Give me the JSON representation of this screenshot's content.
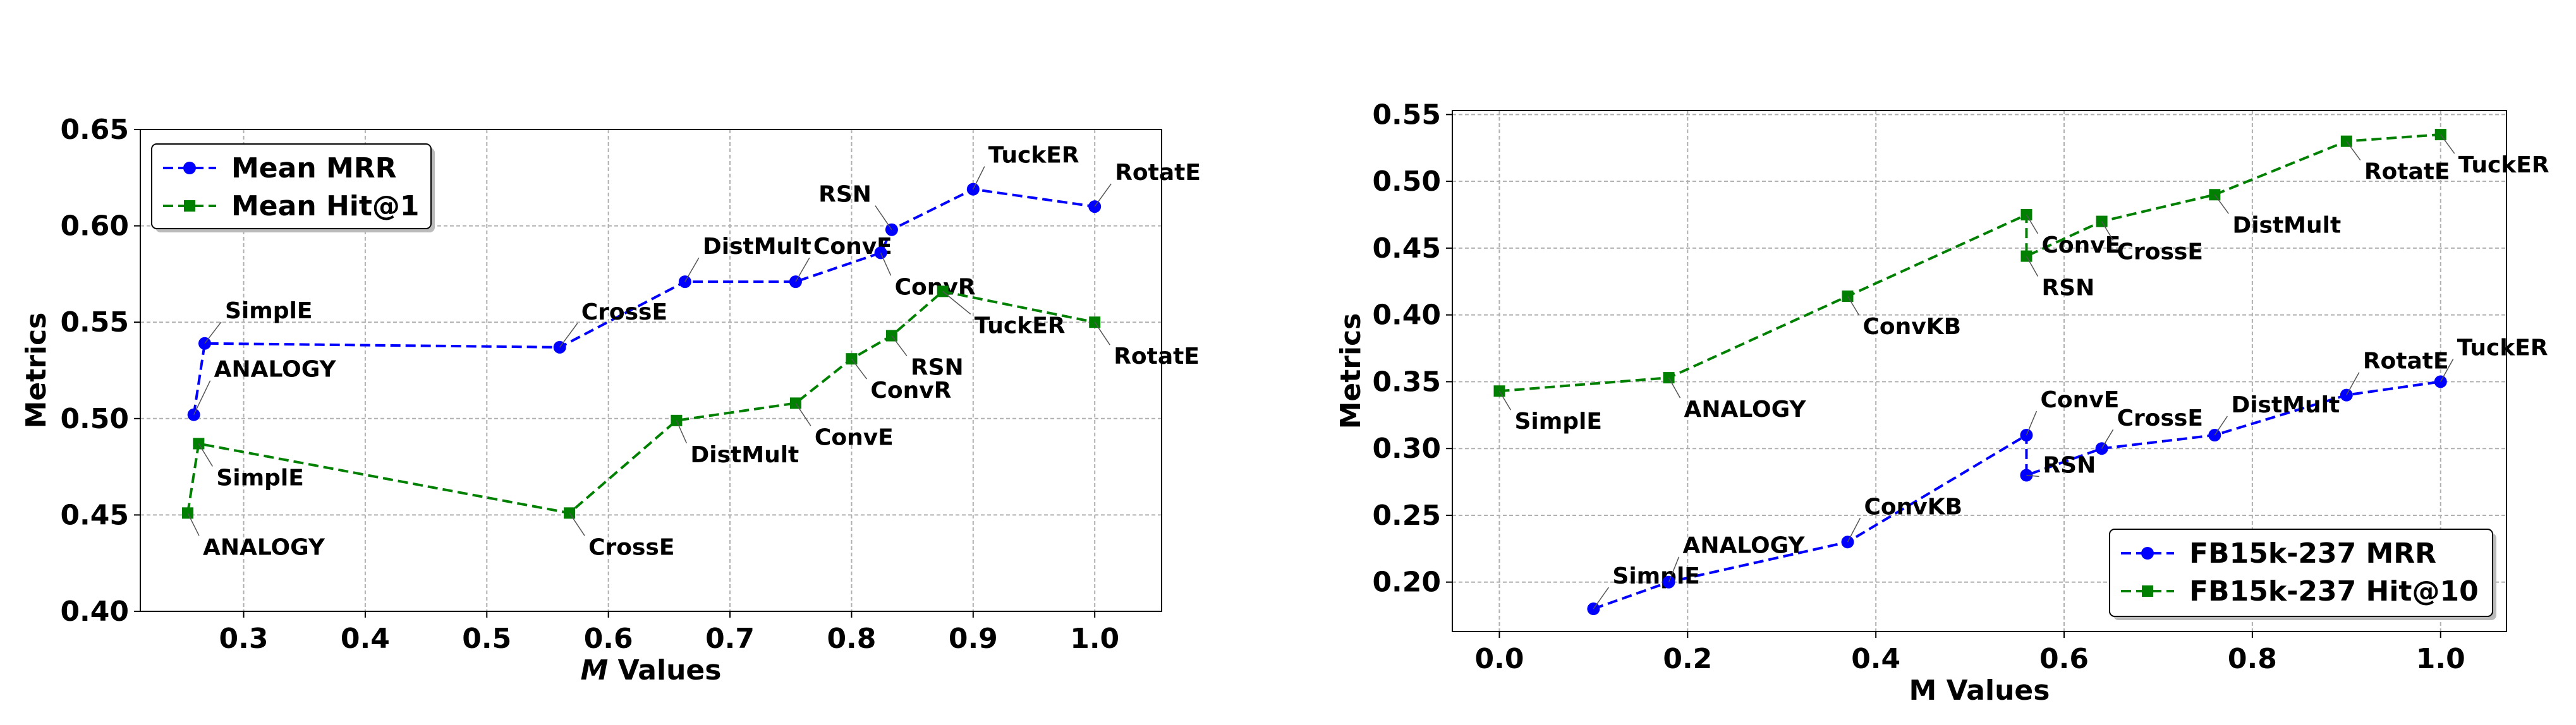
{
  "chart_data": [
    {
      "type": "line",
      "xlabel_italic": "M",
      "xlabel_rest": " Values",
      "ylabel": "Metrics",
      "xlim": [
        0.215,
        1.055
      ],
      "ylim": [
        0.4,
        0.65
      ],
      "xticks": [
        "0.3",
        "0.4",
        "0.5",
        "0.6",
        "0.7",
        "0.8",
        "0.9",
        "1.0"
      ],
      "yticks": [
        "0.40",
        "0.45",
        "0.50",
        "0.55",
        "0.60",
        "0.65"
      ],
      "grid": true,
      "legend": "upper-left",
      "series": [
        {
          "name": "Mean MRR",
          "color": "#0000ff",
          "marker": "circle",
          "points": [
            {
              "x": 0.259,
              "y": 0.502,
              "label": "ANALOGY"
            },
            {
              "x": 0.268,
              "y": 0.539,
              "label": "SimplE"
            },
            {
              "x": 0.56,
              "y": 0.537,
              "label": "CrossE"
            },
            {
              "x": 0.663,
              "y": 0.571,
              "label": "DistMult"
            },
            {
              "x": 0.754,
              "y": 0.571,
              "label": "ConvE"
            },
            {
              "x": 0.824,
              "y": 0.586,
              "label": "ConvR"
            },
            {
              "x": 0.833,
              "y": 0.598,
              "label": "RSN"
            },
            {
              "x": 0.9,
              "y": 0.619,
              "label": "TuckER"
            },
            {
              "x": 1.0,
              "y": 0.61,
              "label": "RotatE"
            }
          ]
        },
        {
          "name": "Mean Hit@1",
          "color": "#008000",
          "marker": "square",
          "points": [
            {
              "x": 0.254,
              "y": 0.451,
              "label": "ANALOGY"
            },
            {
              "x": 0.263,
              "y": 0.487,
              "label": "SimplE"
            },
            {
              "x": 0.568,
              "y": 0.451,
              "label": "CrossE"
            },
            {
              "x": 0.656,
              "y": 0.499,
              "label": "DistMult"
            },
            {
              "x": 0.754,
              "y": 0.508,
              "label": "ConvE"
            },
            {
              "x": 0.8,
              "y": 0.531,
              "label": "ConvR"
            },
            {
              "x": 0.833,
              "y": 0.543,
              "label": "RSN"
            },
            {
              "x": 0.875,
              "y": 0.566,
              "label": "TuckER"
            },
            {
              "x": 1.0,
              "y": 0.55,
              "label": "RotatE"
            }
          ]
        }
      ]
    },
    {
      "type": "line",
      "xlabel": "M Values",
      "ylabel": "Metrics",
      "xlim": [
        -0.05,
        1.07
      ],
      "ylim": [
        0.163,
        0.553
      ],
      "xticks": [
        "0.0",
        "0.2",
        "0.4",
        "0.6",
        "0.8",
        "1.0"
      ],
      "yticks": [
        "0.20",
        "0.25",
        "0.30",
        "0.35",
        "0.40",
        "0.45",
        "0.50",
        "0.55"
      ],
      "grid": true,
      "legend": "lower-right",
      "series": [
        {
          "name": "FB15k-237 MRR",
          "color": "#0000ff",
          "marker": "circle",
          "points": [
            {
              "x": 0.1,
              "y": 0.18,
              "label": "SimplE"
            },
            {
              "x": 0.18,
              "y": 0.2,
              "label": "ANALOGY"
            },
            {
              "x": 0.37,
              "y": 0.23,
              "label": "ConvKB"
            },
            {
              "x": 0.56,
              "y": 0.31,
              "label": "ConvE"
            },
            {
              "x": 0.56,
              "y": 0.28,
              "label": "RSN"
            },
            {
              "x": 0.64,
              "y": 0.3,
              "label": "CrossE"
            },
            {
              "x": 0.76,
              "y": 0.31,
              "label": "DistMult"
            },
            {
              "x": 0.9,
              "y": 0.34,
              "label": "RotatE"
            },
            {
              "x": 1.0,
              "y": 0.35,
              "label": "TuckER"
            }
          ]
        },
        {
          "name": "FB15k-237 Hit@10",
          "color": "#008000",
          "marker": "square",
          "points": [
            {
              "x": 0.0,
              "y": 0.343,
              "label": "SimplE"
            },
            {
              "x": 0.18,
              "y": 0.353,
              "label": "ANALOGY"
            },
            {
              "x": 0.37,
              "y": 0.414,
              "label": "ConvKB"
            },
            {
              "x": 0.56,
              "y": 0.475,
              "label": "ConvE"
            },
            {
              "x": 0.56,
              "y": 0.444,
              "label": "RSN"
            },
            {
              "x": 0.64,
              "y": 0.47,
              "label": "CrossE"
            },
            {
              "x": 0.76,
              "y": 0.49,
              "label": "DistMult"
            },
            {
              "x": 0.9,
              "y": 0.53,
              "label": "RotatE"
            },
            {
              "x": 1.0,
              "y": 0.535,
              "label": "TuckER"
            }
          ]
        }
      ]
    }
  ]
}
